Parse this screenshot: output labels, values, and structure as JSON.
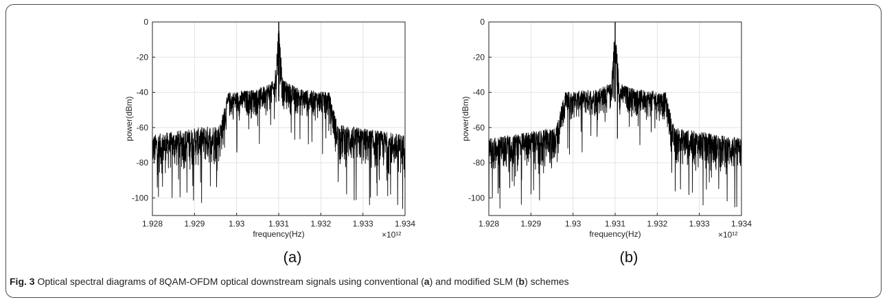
{
  "chart_data": [
    {
      "type": "line",
      "panel_label": "(a)",
      "xlabel": "frequency(Hz)",
      "ylabel": "power(dBm)",
      "x_multiplier": "×10¹²",
      "xlim": [
        1.928,
        1.934
      ],
      "ylim": [
        -110,
        0
      ],
      "x_ticks": [
        "1.928",
        "1.929",
        "1.93",
        "1.931",
        "1.932",
        "1.933",
        "1.934"
      ],
      "y_ticks": [
        "0",
        "-20",
        "-40",
        "-60",
        "-80",
        "-100"
      ],
      "grid": true,
      "series": [
        {
          "color": "#000000",
          "envelope_x": [
            1.928,
            1.9296,
            1.9298,
            1.9305,
            1.9309,
            1.931,
            1.9311,
            1.9315,
            1.9322,
            1.9324,
            1.934
          ],
          "envelope_top_y": [
            -64,
            -58,
            -40,
            -38,
            -33,
            0,
            -33,
            -38,
            -40,
            -58,
            -64
          ],
          "envelope_bottom_y": [
            -90,
            -84,
            -58,
            -56,
            -52,
            -42,
            -52,
            -56,
            -58,
            -84,
            -90
          ]
        }
      ]
    },
    {
      "type": "line",
      "panel_label": "(b)",
      "xlabel": "frequency(Hz)",
      "ylabel": "power(dBm)",
      "x_multiplier": "×10¹²",
      "xlim": [
        1.928,
        1.934
      ],
      "ylim": [
        -110,
        0
      ],
      "x_ticks": [
        "1.928",
        "1.929",
        "1.93",
        "1.931",
        "1.932",
        "1.933",
        "1.934"
      ],
      "y_ticks": [
        "0",
        "-20",
        "-40",
        "-60",
        "-80",
        "-100"
      ],
      "grid": true,
      "series": [
        {
          "color": "#000000",
          "envelope_x": [
            1.928,
            1.9296,
            1.9298,
            1.9305,
            1.9309,
            1.931,
            1.9311,
            1.9315,
            1.9322,
            1.9324,
            1.934
          ],
          "envelope_top_y": [
            -66,
            -60,
            -40,
            -38,
            -35,
            0,
            -35,
            -38,
            -40,
            -60,
            -66
          ],
          "envelope_bottom_y": [
            -90,
            -84,
            -58,
            -56,
            -54,
            -45,
            -54,
            -56,
            -58,
            -84,
            -90
          ]
        }
      ]
    }
  ],
  "caption": {
    "fig_label": "Fig. 3",
    "text_1": " Optical spectral diagrams of 8QAM-OFDM optical downstream signals using conventional (",
    "mark_a": "a",
    "text_2": ") and modified SLM (",
    "mark_b": "b",
    "text_3": ") schemes"
  }
}
